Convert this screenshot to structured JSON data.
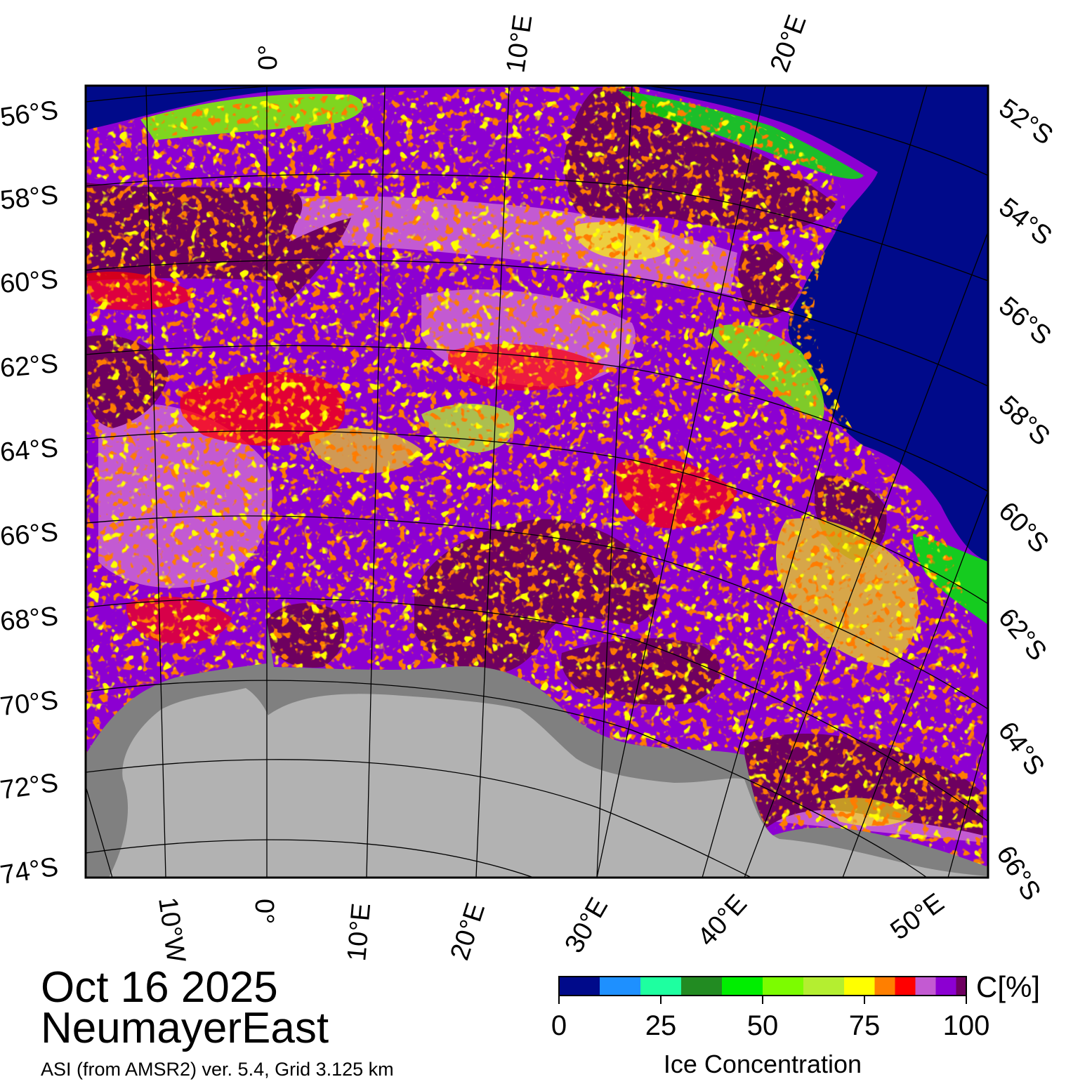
{
  "title": {
    "date": "Oct 16 2025",
    "region": "NeumayerEast"
  },
  "caption": "ASI (from AMSR2) ver. 5.4,  Grid 3.125 km",
  "map": {
    "left_lat_labels": [
      "56°S",
      "58°S",
      "60°S",
      "62°S",
      "64°S",
      "66°S",
      "68°S",
      "70°S",
      "72°S",
      "74°S"
    ],
    "right_lat_labels": [
      "52°S",
      "54°S",
      "56°S",
      "58°S",
      "60°S",
      "62°S",
      "64°S",
      "66°S"
    ],
    "top_lon_labels": [
      "0°",
      "10°E",
      "20°E"
    ],
    "bottom_lon_labels": [
      "10°W",
      "0°",
      "10°E",
      "20°E",
      "30°E",
      "40°E",
      "50°E"
    ],
    "colors": {
      "open_ocean": "#000a8a",
      "ice_full": "#6e0060",
      "land_ice": "#b2b2b2",
      "ice_shelf": "#808080"
    }
  },
  "colorbar": {
    "title": "Ice Concentration",
    "unit": "C[%]",
    "ticks": [
      "0",
      "25",
      "50",
      "75",
      "100"
    ],
    "bins": [
      {
        "range": "0-10",
        "color": "#000a8a"
      },
      {
        "range": "10-20",
        "color": "#1e90ff"
      },
      {
        "range": "20-30",
        "color": "#1effa0"
      },
      {
        "range": "30-40",
        "color": "#228b22"
      },
      {
        "range": "40-50",
        "color": "#00ee00"
      },
      {
        "range": "50-60",
        "color": "#7cfc00"
      },
      {
        "range": "60-70",
        "color": "#b4ee30"
      },
      {
        "range": "70-77.5",
        "color": "#ffff00"
      },
      {
        "range": "77.5-82.5",
        "color": "#ff7f00"
      },
      {
        "range": "82.5-87.5",
        "color": "#ff0000"
      },
      {
        "range": "87.5-92.5",
        "color": "#c35ad2"
      },
      {
        "range": "92.5-97.5",
        "color": "#8c00d2"
      },
      {
        "range": "97.5-100",
        "color": "#6e0060"
      }
    ]
  }
}
